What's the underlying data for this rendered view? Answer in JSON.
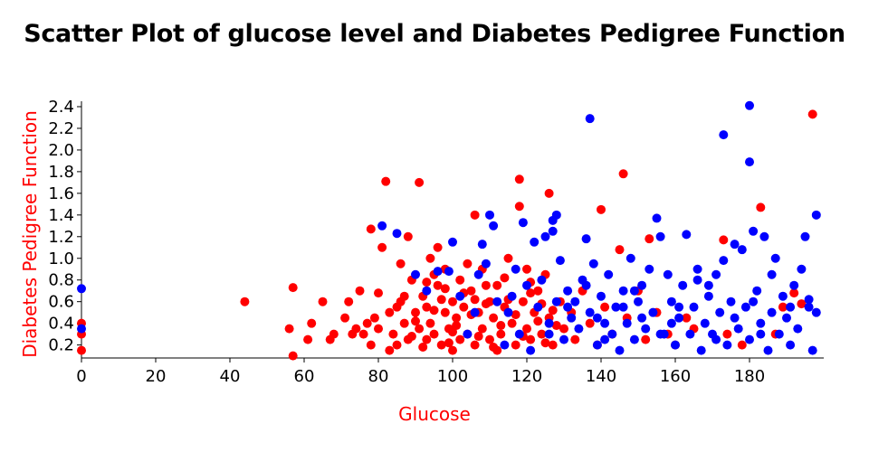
{
  "chart_data": {
    "type": "scatter",
    "title": "Scatter Plot of glucose level and Diabetes Pedigree Function",
    "xlabel": "Glucose",
    "ylabel": "Diabetes Pedigree Function",
    "xlim": [
      0,
      200
    ],
    "ylim": [
      0.08,
      2.45
    ],
    "x_ticks": [
      0,
      20,
      40,
      60,
      80,
      100,
      120,
      140,
      160,
      180
    ],
    "y_ticks": [
      0.2,
      0.4,
      0.6,
      0.8,
      1.0,
      1.2,
      1.4,
      1.6,
      1.8,
      2.0,
      2.2,
      2.4
    ],
    "y_tick_labels": [
      "0.2",
      "0.4",
      "0.6",
      "0.8",
      "1.0",
      "1.2",
      "1.4",
      "1.6",
      "1.8",
      "2.0",
      "2.2",
      "2.4"
    ],
    "grid": false,
    "legend": "none",
    "axis_title_color": "#ff0000",
    "series": [
      {
        "color": "#ff0000",
        "points": [
          [
            0,
            0.15
          ],
          [
            0,
            0.3
          ],
          [
            0,
            0.4
          ],
          [
            44,
            0.6
          ],
          [
            56,
            0.35
          ],
          [
            57,
            0.73
          ],
          [
            57,
            0.1
          ],
          [
            61,
            0.25
          ],
          [
            62,
            0.4
          ],
          [
            65,
            0.6
          ],
          [
            67,
            0.25
          ],
          [
            68,
            0.3
          ],
          [
            71,
            0.45
          ],
          [
            72,
            0.6
          ],
          [
            73,
            0.3
          ],
          [
            74,
            0.35
          ],
          [
            75,
            0.7
          ],
          [
            76,
            0.3
          ],
          [
            77,
            0.4
          ],
          [
            78,
            0.2
          ],
          [
            78,
            1.27
          ],
          [
            80,
            0.35
          ],
          [
            80,
            0.68
          ],
          [
            81,
            1.1
          ],
          [
            82,
            1.71
          ],
          [
            83,
            0.5
          ],
          [
            84,
            0.3
          ],
          [
            85,
            0.2
          ],
          [
            86,
            0.6
          ],
          [
            86,
            0.95
          ],
          [
            87,
            0.4
          ],
          [
            88,
            0.25
          ],
          [
            88,
            1.2
          ],
          [
            89,
            0.8
          ],
          [
            90,
            0.5
          ],
          [
            91,
            0.35
          ],
          [
            91,
            1.7
          ],
          [
            92,
            0.65
          ],
          [
            93,
            0.25
          ],
          [
            93,
            0.55
          ],
          [
            94,
            0.4
          ],
          [
            94,
            1.0
          ],
          [
            95,
            0.3
          ],
          [
            96,
            0.75
          ],
          [
            96,
            1.1
          ],
          [
            97,
            0.2
          ],
          [
            98,
            0.5
          ],
          [
            98,
            0.9
          ],
          [
            99,
            0.35
          ],
          [
            100,
            0.6
          ],
          [
            100,
            0.15
          ],
          [
            101,
            0.45
          ],
          [
            102,
            0.8
          ],
          [
            102,
            0.25
          ],
          [
            103,
            0.55
          ],
          [
            104,
            0.3
          ],
          [
            105,
            0.7
          ],
          [
            106,
            1.4
          ],
          [
            106,
            0.2
          ],
          [
            107,
            0.5
          ],
          [
            108,
            0.9
          ],
          [
            108,
            0.35
          ],
          [
            110,
            0.25
          ],
          [
            110,
            0.6
          ],
          [
            111,
            0.45
          ],
          [
            112,
            0.75
          ],
          [
            112,
            0.15
          ],
          [
            113,
            0.3
          ],
          [
            114,
            0.55
          ],
          [
            115,
            1.0
          ],
          [
            116,
            0.4
          ],
          [
            117,
            0.2
          ],
          [
            118,
            1.73
          ],
          [
            118,
            1.48
          ],
          [
            119,
            0.6
          ],
          [
            120,
            0.35
          ],
          [
            120,
            0.9
          ],
          [
            121,
            0.25
          ],
          [
            122,
            0.5
          ],
          [
            123,
            0.7
          ],
          [
            124,
            0.3
          ],
          [
            125,
            0.85
          ],
          [
            126,
            1.6
          ],
          [
            126,
            0.45
          ],
          [
            127,
            0.2
          ],
          [
            129,
            0.6
          ],
          [
            130,
            0.35
          ],
          [
            132,
            0.5
          ],
          [
            133,
            0.25
          ],
          [
            135,
            0.7
          ],
          [
            137,
            0.4
          ],
          [
            139,
            0.2
          ],
          [
            140,
            1.45
          ],
          [
            141,
            0.55
          ],
          [
            143,
            0.3
          ],
          [
            145,
            1.08
          ],
          [
            146,
            1.78
          ],
          [
            147,
            0.45
          ],
          [
            150,
            0.7
          ],
          [
            152,
            0.25
          ],
          [
            153,
            1.18
          ],
          [
            155,
            0.5
          ],
          [
            158,
            0.3
          ],
          [
            160,
            0.2
          ],
          [
            163,
            0.45
          ],
          [
            165,
            0.35
          ],
          [
            173,
            1.17
          ],
          [
            174,
            0.3
          ],
          [
            178,
            0.2
          ],
          [
            183,
            1.47
          ],
          [
            187,
            0.3
          ],
          [
            189,
            0.55
          ],
          [
            192,
            0.68
          ],
          [
            194,
            0.58
          ],
          [
            197,
            2.33
          ],
          [
            79,
            0.45
          ],
          [
            83,
            0.15
          ],
          [
            85,
            0.55
          ],
          [
            87,
            0.65
          ],
          [
            89,
            0.28
          ],
          [
            90,
            0.42
          ],
          [
            92,
            0.18
          ],
          [
            95,
            0.52
          ],
          [
            97,
            0.62
          ],
          [
            99,
            0.22
          ],
          [
            101,
            0.38
          ],
          [
            103,
            0.68
          ],
          [
            105,
            0.48
          ],
          [
            107,
            0.28
          ],
          [
            109,
            0.58
          ],
          [
            111,
            0.18
          ],
          [
            113,
            0.38
          ],
          [
            115,
            0.62
          ],
          [
            117,
            0.48
          ],
          [
            119,
            0.28
          ],
          [
            121,
            0.68
          ],
          [
            123,
            0.42
          ],
          [
            125,
            0.22
          ],
          [
            127,
            0.52
          ],
          [
            95,
            0.85
          ],
          [
            104,
            0.95
          ],
          [
            109,
            0.75
          ],
          [
            114,
            0.82
          ],
          [
            121,
            0.78
          ],
          [
            124,
            0.58
          ],
          [
            128,
            0.38
          ],
          [
            98,
            0.72
          ],
          [
            93,
            0.78
          ],
          [
            100,
            0.32
          ],
          [
            106,
            0.62
          ]
        ]
      },
      {
        "color": "#0000ff",
        "points": [
          [
            0,
            0.72
          ],
          [
            0,
            0.35
          ],
          [
            81,
            1.3
          ],
          [
            85,
            1.23
          ],
          [
            90,
            0.85
          ],
          [
            93,
            0.7
          ],
          [
            96,
            0.88
          ],
          [
            99,
            0.88
          ],
          [
            100,
            1.15
          ],
          [
            102,
            0.65
          ],
          [
            104,
            0.3
          ],
          [
            106,
            0.5
          ],
          [
            107,
            0.85
          ],
          [
            108,
            1.13
          ],
          [
            109,
            0.95
          ],
          [
            110,
            1.4
          ],
          [
            111,
            1.3
          ],
          [
            112,
            0.6
          ],
          [
            114,
            0.2
          ],
          [
            115,
            0.5
          ],
          [
            117,
            0.9
          ],
          [
            118,
            0.3
          ],
          [
            119,
            1.33
          ],
          [
            120,
            0.75
          ],
          [
            121,
            0.15
          ],
          [
            122,
            1.15
          ],
          [
            123,
            0.55
          ],
          [
            124,
            0.8
          ],
          [
            125,
            1.2
          ],
          [
            126,
            0.4
          ],
          [
            127,
            1.25
          ],
          [
            127,
            1.35
          ],
          [
            128,
            1.4
          ],
          [
            128,
            0.6
          ],
          [
            129,
            0.98
          ],
          [
            130,
            0.25
          ],
          [
            131,
            0.7
          ],
          [
            132,
            0.45
          ],
          [
            133,
            0.6
          ],
          [
            134,
            0.35
          ],
          [
            135,
            0.8
          ],
          [
            136,
            1.18
          ],
          [
            137,
            2.29
          ],
          [
            137,
            0.5
          ],
          [
            138,
            0.95
          ],
          [
            139,
            0.2
          ],
          [
            140,
            0.65
          ],
          [
            141,
            0.4
          ],
          [
            142,
            0.85
          ],
          [
            143,
            0.3
          ],
          [
            144,
            0.55
          ],
          [
            145,
            0.15
          ],
          [
            146,
            0.7
          ],
          [
            147,
            0.4
          ],
          [
            148,
            1.0
          ],
          [
            149,
            0.25
          ],
          [
            150,
            0.6
          ],
          [
            151,
            0.75
          ],
          [
            152,
            0.35
          ],
          [
            153,
            0.9
          ],
          [
            154,
            0.5
          ],
          [
            155,
            1.37
          ],
          [
            156,
            1.2
          ],
          [
            157,
            0.3
          ],
          [
            158,
            0.85
          ],
          [
            159,
            0.6
          ],
          [
            160,
            0.2
          ],
          [
            161,
            0.45
          ],
          [
            162,
            0.75
          ],
          [
            163,
            1.22
          ],
          [
            164,
            0.3
          ],
          [
            165,
            0.55
          ],
          [
            166,
            0.8
          ],
          [
            167,
            0.15
          ],
          [
            168,
            0.4
          ],
          [
            169,
            0.65
          ],
          [
            170,
            0.3
          ],
          [
            171,
            0.85
          ],
          [
            172,
            0.5
          ],
          [
            173,
            2.14
          ],
          [
            173,
            0.98
          ],
          [
            174,
            0.2
          ],
          [
            175,
            0.6
          ],
          [
            176,
            1.13
          ],
          [
            177,
            0.35
          ],
          [
            178,
            1.08
          ],
          [
            179,
            0.55
          ],
          [
            180,
            2.41
          ],
          [
            180,
            1.89
          ],
          [
            180,
            0.25
          ],
          [
            181,
            1.25
          ],
          [
            182,
            0.7
          ],
          [
            183,
            0.4
          ],
          [
            184,
            1.2
          ],
          [
            185,
            0.15
          ],
          [
            186,
            0.5
          ],
          [
            187,
            1.0
          ],
          [
            188,
            0.3
          ],
          [
            189,
            0.65
          ],
          [
            190,
            0.45
          ],
          [
            191,
            0.2
          ],
          [
            192,
            0.75
          ],
          [
            193,
            0.35
          ],
          [
            194,
            0.9
          ],
          [
            195,
            1.2
          ],
          [
            196,
            0.55
          ],
          [
            197,
            0.15
          ],
          [
            198,
            1.4
          ],
          [
            198,
            0.5
          ],
          [
            196,
            0.62
          ],
          [
            186,
            0.85
          ],
          [
            176,
            0.45
          ],
          [
            166,
            0.9
          ],
          [
            156,
            0.3
          ],
          [
            146,
            0.55
          ],
          [
            136,
            0.75
          ],
          [
            126,
            0.3
          ],
          [
            116,
            0.65
          ],
          [
            131,
            0.55
          ],
          [
            141,
            0.25
          ],
          [
            151,
            0.45
          ],
          [
            161,
            0.55
          ],
          [
            171,
            0.25
          ],
          [
            181,
            0.6
          ],
          [
            191,
            0.55
          ],
          [
            183,
            0.3
          ],
          [
            169,
            0.75
          ],
          [
            159,
            0.4
          ],
          [
            149,
            0.7
          ],
          [
            139,
            0.45
          ]
        ]
      }
    ]
  }
}
